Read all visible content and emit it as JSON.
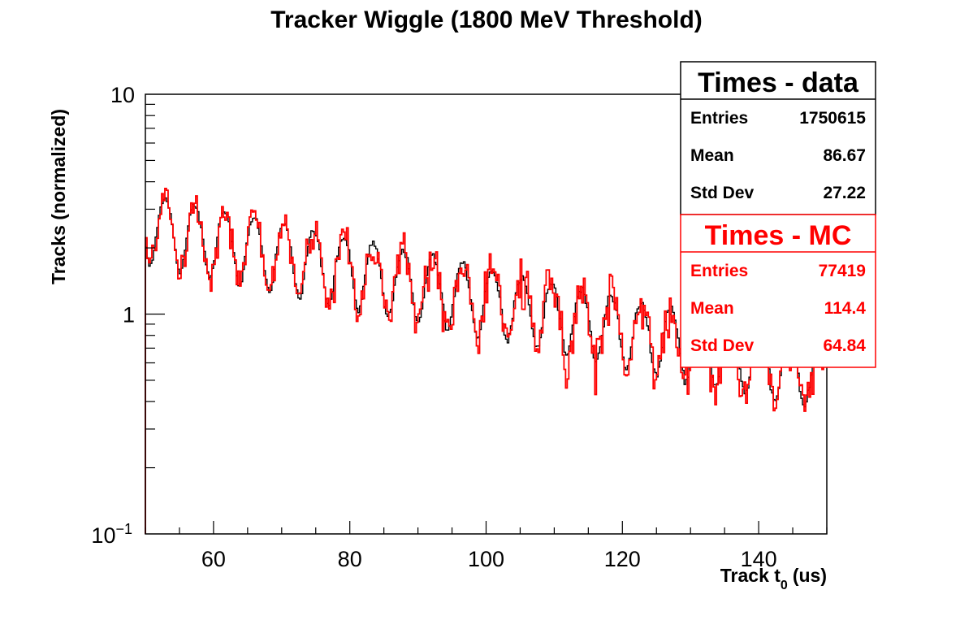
{
  "chart_data": {
    "type": "line",
    "title": "Tracker Wiggle (1800 MeV Threshold)",
    "xlabel_main": "Track t",
    "xlabel_sub": "0",
    "xlabel_unit": "(us)",
    "ylabel": "Tracks (normalized)",
    "xlim": [
      50,
      150
    ],
    "ylim": [
      0.1,
      10
    ],
    "yscale": "log",
    "x_ticks": [
      60,
      80,
      100,
      120,
      140
    ],
    "x_tick_labels": [
      "60",
      "80",
      "100",
      "120",
      "140"
    ],
    "y_ticks": [
      1,
      10
    ],
    "y_tick_labels": [
      "1",
      "10"
    ],
    "y_min_label_base": "10",
    "y_min_label_exp": "−1",
    "grid": false,
    "legend_position": "top-right",
    "series": [
      {
        "name": "Times - data",
        "color": "#000000",
        "model": {
          "amplitude": 2.6,
          "lifetime_us": 64.4,
          "modulation": 0.35,
          "period_us": 4.365,
          "phase": 2.1,
          "noise": 0.04
        },
        "stats": [
          {
            "label": "Entries",
            "value": "1750615"
          },
          {
            "label": "Mean",
            "value": "86.67"
          },
          {
            "label": "Std Dev",
            "value": "27.22"
          }
        ]
      },
      {
        "name": "Times - MC",
        "color": "#ff0000",
        "model": {
          "amplitude": 2.6,
          "lifetime_us": 64.4,
          "modulation": 0.35,
          "period_us": 4.365,
          "phase": 2.1,
          "noise": 0.22
        },
        "stats": [
          {
            "label": "Entries",
            "value": "77419"
          },
          {
            "label": "Mean",
            "value": "114.4"
          },
          {
            "label": "Std Dev",
            "value": "64.84"
          }
        ]
      }
    ]
  }
}
